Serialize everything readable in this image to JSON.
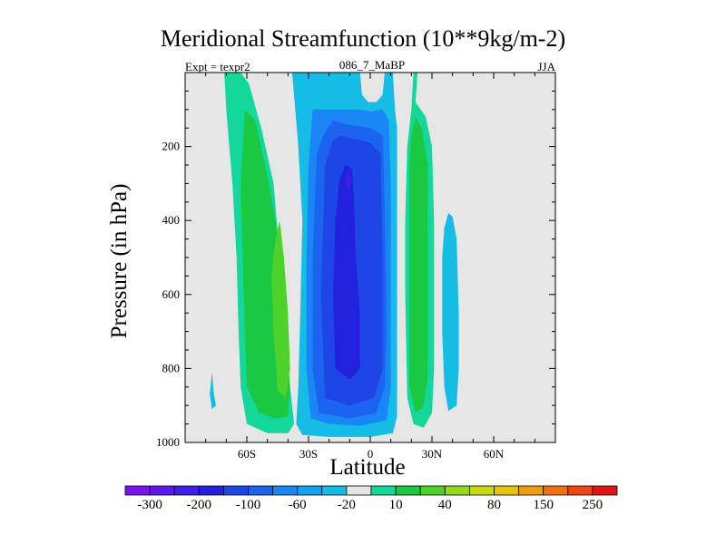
{
  "chart_data": {
    "type": "heatmap",
    "title": "Meridional Streamfunction (10**9kg/m-2)",
    "left_label": "Expt = texpr2",
    "center_label": "086_7_MaBP",
    "right_label": "JJA",
    "xlabel": "Latitude",
    "ylabel": "Pressure (in hPa)",
    "x_range": [
      -90,
      90
    ],
    "y_range": [
      0,
      1000
    ],
    "y_inverted": true,
    "x_ticks": [
      {
        "v": -60,
        "label": "60S"
      },
      {
        "v": -30,
        "label": "30S"
      },
      {
        "v": 0,
        "label": "0"
      },
      {
        "v": 30,
        "label": "30N"
      },
      {
        "v": 60,
        "label": "60N"
      }
    ],
    "y_ticks": [
      {
        "v": 200,
        "label": "200"
      },
      {
        "v": 400,
        "label": "400"
      },
      {
        "v": 600,
        "label": "600"
      },
      {
        "v": 800,
        "label": "800"
      },
      {
        "v": 1000,
        "label": "1000"
      }
    ],
    "background_color": "#e6e6e6",
    "colorbar": {
      "colors": [
        "#7c12ee",
        "#5b1aeb",
        "#3d1fe8",
        "#2222dc",
        "#1e46e6",
        "#1c64f0",
        "#1a86f5",
        "#14a2f0",
        "#15bde6",
        "#e6e6e6",
        "#14d89b",
        "#1ac842",
        "#4cd22a",
        "#92d81c",
        "#c8d812",
        "#e6c40c",
        "#f09c0c",
        "#f07014",
        "#f04414",
        "#e11414"
      ],
      "labels": [
        {
          "after": 1,
          "text": "-300"
        },
        {
          "after": 3,
          "text": "-200"
        },
        {
          "after": 5,
          "text": "-100"
        },
        {
          "after": 7,
          "text": "-60"
        },
        {
          "after": 9,
          "text": "-20"
        },
        {
          "after": 11,
          "text": "10"
        },
        {
          "after": 13,
          "text": "40"
        },
        {
          "after": 15,
          "text": "80"
        },
        {
          "after": 17,
          "text": "150"
        },
        {
          "after": 19,
          "text": "250"
        }
      ]
    },
    "regions": [
      {
        "name": "Southern cell level 10",
        "color": "#14d89b",
        "points": [
          [
            -71,
            0
          ],
          [
            -63,
            0
          ],
          [
            -59,
            30
          ],
          [
            -53,
            150
          ],
          [
            -47,
            300
          ],
          [
            -44,
            500
          ],
          [
            -42,
            650
          ],
          [
            -40,
            800
          ],
          [
            -38,
            900
          ],
          [
            -37,
            950
          ],
          [
            -40,
            975
          ],
          [
            -50,
            975
          ],
          [
            -60,
            950
          ],
          [
            -63,
            850
          ],
          [
            -64,
            700
          ],
          [
            -65,
            500
          ],
          [
            -67,
            300
          ],
          [
            -70,
            100
          ]
        ]
      },
      {
        "name": "Southern cell level 40",
        "color": "#1ac842",
        "points": [
          [
            -61,
            100
          ],
          [
            -56,
            130
          ],
          [
            -51,
            250
          ],
          [
            -46,
            400
          ],
          [
            -43,
            550
          ],
          [
            -41,
            700
          ],
          [
            -39,
            850
          ],
          [
            -40,
            930
          ],
          [
            -46,
            935
          ],
          [
            -54,
            920
          ],
          [
            -60,
            850
          ],
          [
            -61,
            700
          ],
          [
            -62,
            500
          ],
          [
            -63,
            300
          ],
          [
            -62,
            200
          ]
        ]
      },
      {
        "name": "Southern cell level 80",
        "color": "#4cd22a",
        "points": [
          [
            -44,
            400
          ],
          [
            -42,
            500
          ],
          [
            -40,
            650
          ],
          [
            -39,
            800
          ],
          [
            -41,
            880
          ],
          [
            -45,
            860
          ],
          [
            -47,
            700
          ],
          [
            -48,
            550
          ],
          [
            -46,
            450
          ]
        ]
      },
      {
        "name": "Small negative patch at 70S",
        "color": "#15bde6",
        "points": [
          [
            -77,
            810
          ],
          [
            -76,
            870
          ],
          [
            -75,
            900
          ],
          [
            -77,
            910
          ],
          [
            -78,
            870
          ]
        ]
      },
      {
        "name": "Central cell level -10",
        "color": "#15bde6",
        "points": [
          [
            -38,
            0
          ],
          [
            -5,
            0
          ],
          [
            -4,
            60
          ],
          [
            -1,
            80
          ],
          [
            3,
            80
          ],
          [
            6,
            60
          ],
          [
            7,
            0
          ],
          [
            11,
            0
          ],
          [
            12,
            100
          ],
          [
            13,
            150
          ],
          [
            13,
            300
          ],
          [
            13,
            500
          ],
          [
            13,
            800
          ],
          [
            13,
            930
          ],
          [
            11,
            975
          ],
          [
            0,
            985
          ],
          [
            -20,
            985
          ],
          [
            -33,
            980
          ],
          [
            -36,
            950
          ],
          [
            -35,
            850
          ],
          [
            -34,
            650
          ],
          [
            -33,
            400
          ],
          [
            -35,
            200
          ]
        ]
      },
      {
        "name": "Central cell level -20",
        "color": "#1a86f5",
        "points": [
          [
            -28,
            100
          ],
          [
            -15,
            100
          ],
          [
            -6,
            100
          ],
          [
            1,
            105
          ],
          [
            6,
            100
          ],
          [
            9,
            130
          ],
          [
            10,
            300
          ],
          [
            10,
            600
          ],
          [
            10,
            850
          ],
          [
            8,
            940
          ],
          [
            -5,
            955
          ],
          [
            -20,
            950
          ],
          [
            -29,
            935
          ],
          [
            -31,
            800
          ],
          [
            -31,
            500
          ],
          [
            -30,
            250
          ]
        ]
      },
      {
        "name": "Central cell level -60",
        "color": "#1c64f0",
        "points": [
          [
            -18,
            130
          ],
          [
            -12,
            140
          ],
          [
            0,
            150
          ],
          [
            6,
            170
          ],
          [
            7,
            350
          ],
          [
            8,
            700
          ],
          [
            7,
            850
          ],
          [
            3,
            920
          ],
          [
            -10,
            935
          ],
          [
            -25,
            920
          ],
          [
            -28,
            800
          ],
          [
            -28,
            500
          ],
          [
            -26,
            220
          ],
          [
            -22,
            160
          ]
        ]
      },
      {
        "name": "Central cell level -100",
        "color": "#1e46e6",
        "points": [
          [
            -14,
            170
          ],
          [
            0,
            190
          ],
          [
            5,
            220
          ],
          [
            6,
            500
          ],
          [
            6,
            800
          ],
          [
            2,
            880
          ],
          [
            -10,
            900
          ],
          [
            -22,
            880
          ],
          [
            -24,
            600
          ],
          [
            -22,
            250
          ],
          [
            -18,
            180
          ]
        ]
      },
      {
        "name": "Central cell level -150",
        "color": "#2222dc",
        "points": [
          [
            -12,
            250
          ],
          [
            -9,
            260
          ],
          [
            -8,
            330
          ],
          [
            -7,
            500
          ],
          [
            -5,
            650
          ],
          [
            -5,
            800
          ],
          [
            -10,
            830
          ],
          [
            -17,
            800
          ],
          [
            -18,
            600
          ],
          [
            -17,
            400
          ],
          [
            -15,
            290
          ]
        ]
      },
      {
        "name": "Central cell level -200",
        "color": "#3d1fe8",
        "points": [
          [
            -11,
            260
          ],
          [
            -9,
            290
          ],
          [
            -10,
            320
          ],
          [
            -12,
            300
          ]
        ]
      },
      {
        "name": "Northern cell level 10",
        "color": "#14d89b",
        "points": [
          [
            21,
            0
          ],
          [
            23,
            0
          ],
          [
            22,
            80
          ],
          [
            27,
            120
          ],
          [
            30,
            200
          ],
          [
            31,
            400
          ],
          [
            31,
            600
          ],
          [
            31,
            800
          ],
          [
            30,
            920
          ],
          [
            26,
            960
          ],
          [
            21,
            950
          ],
          [
            18,
            880
          ],
          [
            17,
            600
          ],
          [
            17,
            400
          ],
          [
            18,
            200
          ],
          [
            20,
            100
          ]
        ]
      },
      {
        "name": "Northern cell level 40",
        "color": "#1ac842",
        "points": [
          [
            22,
            120
          ],
          [
            25,
            150
          ],
          [
            28,
            250
          ],
          [
            28,
            450
          ],
          [
            28,
            650
          ],
          [
            28,
            820
          ],
          [
            26,
            900
          ],
          [
            22,
            920
          ],
          [
            19,
            850
          ],
          [
            19,
            600
          ],
          [
            19,
            400
          ],
          [
            19,
            250
          ],
          [
            20,
            170
          ]
        ]
      },
      {
        "name": "Northern negative patch",
        "color": "#15bde6",
        "points": [
          [
            38,
            380
          ],
          [
            40,
            390
          ],
          [
            42,
            450
          ],
          [
            43,
            650
          ],
          [
            43,
            800
          ],
          [
            42,
            900
          ],
          [
            38,
            915
          ],
          [
            36,
            850
          ],
          [
            35,
            700
          ],
          [
            35,
            500
          ],
          [
            36,
            420
          ]
        ]
      }
    ]
  }
}
